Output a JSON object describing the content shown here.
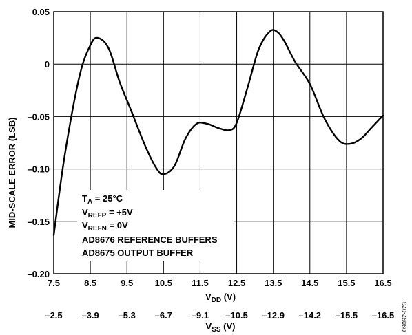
{
  "chart_data": {
    "type": "line",
    "title": "",
    "ylabel": "MID-SCALE ERROR (LSB)",
    "xlabel": {
      "main": "V",
      "sub": "DD",
      "unit": " (V)"
    },
    "x2label": {
      "main": "V",
      "sub": "SS",
      "unit": " (V)"
    },
    "xlim": [
      7.5,
      16.5
    ],
    "ylim": [
      -0.2,
      0.05
    ],
    "x_ticks": [
      "7.5",
      "8.5",
      "9.5",
      "10.5",
      "11.5",
      "12.5",
      "13.5",
      "14.5",
      "15.5",
      "16.5"
    ],
    "x2_ticks": [
      "–2.5",
      "–3.9",
      "–5.3",
      "–6.7",
      "–9.1",
      "–10.5",
      "–12.9",
      "–14.2",
      "–15.5",
      "–16.5"
    ],
    "y_ticks": [
      {
        "v": 0.05,
        "label": "0.05"
      },
      {
        "v": 0,
        "label": "0"
      },
      {
        "v": -0.05,
        "label": "–0.05"
      },
      {
        "v": -0.1,
        "label": "–0.10"
      },
      {
        "v": -0.15,
        "label": "–0.15"
      },
      {
        "v": -0.2,
        "label": "–0.20"
      }
    ],
    "grid": true,
    "series": [
      {
        "x": [
          7.5,
          7.8,
          8.2,
          8.5,
          8.7,
          9.0,
          9.3,
          9.6,
          10.0,
          10.3,
          10.5,
          10.8,
          11.1,
          11.4,
          11.7,
          12.0,
          12.3,
          12.5,
          12.8,
          13.1,
          13.4,
          13.6,
          13.8,
          14.1,
          14.5,
          14.9,
          15.3,
          15.6,
          15.9,
          16.2,
          16.5
        ],
        "y": [
          -0.163,
          -0.087,
          -0.012,
          0.018,
          0.025,
          0.015,
          -0.017,
          -0.043,
          -0.078,
          -0.099,
          -0.105,
          -0.097,
          -0.071,
          -0.057,
          -0.057,
          -0.061,
          -0.063,
          -0.056,
          -0.022,
          0.014,
          0.031,
          0.031,
          0.022,
          0.002,
          -0.019,
          -0.052,
          -0.073,
          -0.076,
          -0.071,
          -0.06,
          -0.049
        ]
      }
    ],
    "annotation": {
      "ta": {
        "main": "T",
        "sub": "A",
        "rest": " = 25°C"
      },
      "vrefp": {
        "main": "V",
        "sub": "REFP",
        "rest": " = +5V"
      },
      "vrefn": {
        "main": "V",
        "sub": "REFN",
        "rest": " = 0V"
      },
      "line4": "AD8676 REFERENCE BUFFERS",
      "line5": "AD8675 OUTPUT BUFFER"
    },
    "figure_id": "09092-023"
  }
}
